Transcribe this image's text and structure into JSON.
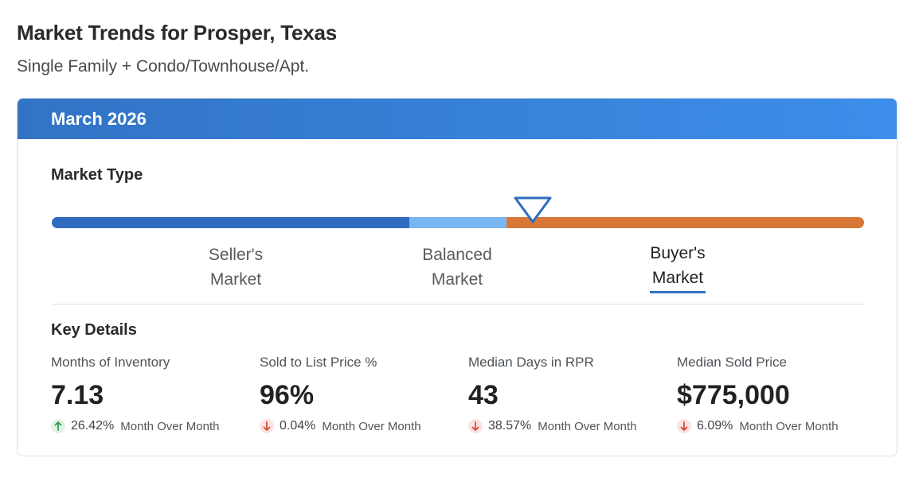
{
  "page": {
    "title": "Market Trends for Prosper, Texas",
    "subtitle": "Single Family + Condo/Townhouse/Apt."
  },
  "card": {
    "header_title": "March 2026",
    "market_type": {
      "label": "Market Type",
      "marker_icon": "triangle-down-marker",
      "options": [
        {
          "line1": "Seller's",
          "line2": "Market",
          "selected": false
        },
        {
          "line1": "Balanced",
          "line2": "Market",
          "selected": false
        },
        {
          "line1": "Buyer's",
          "line2": "Market",
          "selected": true
        }
      ],
      "colors": {
        "seller": "#2f6cbf",
        "balanced": "#7ab6f1",
        "buyer": "#d77837"
      }
    },
    "key_details": {
      "label": "Key Details",
      "metrics": [
        {
          "label": "Months of Inventory",
          "value": "7.13",
          "direction": "up",
          "change": "26.42%",
          "change_label": "Month Over Month"
        },
        {
          "label": "Sold to List Price %",
          "value": "96%",
          "direction": "down",
          "change": "0.04%",
          "change_label": "Month Over Month"
        },
        {
          "label": "Median Days in RPR",
          "value": "43",
          "direction": "down",
          "change": "38.57%",
          "change_label": "Month Over Month"
        },
        {
          "label": "Median Sold Price",
          "value": "$775,000",
          "direction": "down",
          "change": "6.09%",
          "change_label": "Month Over Month"
        }
      ]
    }
  },
  "colors": {
    "header_start": "#3273c5",
    "header_end": "#3c8eea",
    "up_arrow": "#2e9e4f",
    "down_arrow": "#d64a3a"
  }
}
